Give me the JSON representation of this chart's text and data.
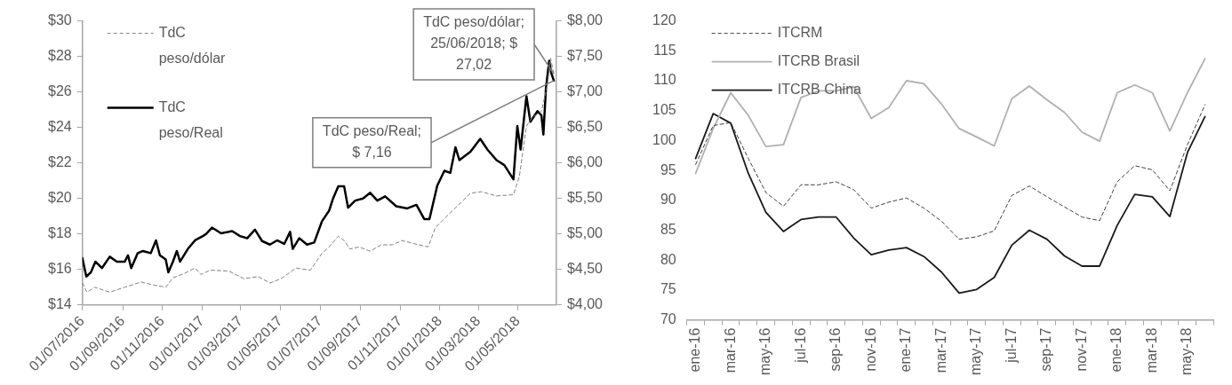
{
  "chart_data": [
    {
      "type": "line",
      "xlim": [
        "2016-07-01",
        "2018-06-29"
      ],
      "xticks": [
        {
          "value": "2016-07-01",
          "label": "01/07/2016"
        },
        {
          "value": "2016-09-01",
          "label": "01/09/2016"
        },
        {
          "value": "2016-11-01",
          "label": "01/11/2016"
        },
        {
          "value": "2017-01-01",
          "label": "01/01/2017"
        },
        {
          "value": "2017-03-01",
          "label": "01/03/2017"
        },
        {
          "value": "2017-05-01",
          "label": "01/05/2017"
        },
        {
          "value": "2017-07-01",
          "label": "01/07/2017"
        },
        {
          "value": "2017-09-01",
          "label": "01/09/2017"
        },
        {
          "value": "2017-11-01",
          "label": "01/11/2017"
        },
        {
          "value": "2018-01-01",
          "label": "01/01/2018"
        },
        {
          "value": "2018-03-01",
          "label": "01/03/2018"
        },
        {
          "value": "2018-05-01",
          "label": "01/05/2018"
        }
      ],
      "ylim": [
        14,
        30
      ],
      "yticks": [
        {
          "value": 14,
          "label": "$14"
        },
        {
          "value": 16,
          "label": "$16"
        },
        {
          "value": 18,
          "label": "$18"
        },
        {
          "value": 20,
          "label": "$20"
        },
        {
          "value": 22,
          "label": "$22"
        },
        {
          "value": 24,
          "label": "$24"
        },
        {
          "value": 26,
          "label": "$26"
        },
        {
          "value": 28,
          "label": "$28"
        },
        {
          "value": 30,
          "label": "$30"
        }
      ],
      "y2lim": [
        4,
        8
      ],
      "y2ticks": [
        {
          "value": 4,
          "label": "$4,00"
        },
        {
          "value": 4.5,
          "label": "$4,50"
        },
        {
          "value": 5,
          "label": "$5,00"
        },
        {
          "value": 5.5,
          "label": "$5,50"
        },
        {
          "value": 6,
          "label": "$6,00"
        },
        {
          "value": 6.5,
          "label": "$6,50"
        },
        {
          "value": 7,
          "label": "$7,00"
        },
        {
          "value": 7.5,
          "label": "$7,50"
        },
        {
          "value": 8,
          "label": "$8,00"
        }
      ],
      "grid": false,
      "legend": "top left",
      "series": [
        {
          "name": "TdC peso/dólar",
          "color": "#808080",
          "line_style": "dashed",
          "x": [
            "2016-07-01",
            "2016-07-08",
            "2016-07-20",
            "2016-08-12",
            "2016-09-04",
            "2016-09-29",
            "2016-10-19",
            "2016-11-06",
            "2016-11-17",
            "2016-12-04",
            "2016-12-21",
            "2016-12-30",
            "2017-01-13",
            "2017-02-11",
            "2017-03-06",
            "2017-03-28",
            "2017-04-15",
            "2017-05-02",
            "2017-05-25",
            "2017-06-16",
            "2017-07-04",
            "2017-07-15",
            "2017-07-29",
            "2017-08-07",
            "2017-08-16",
            "2017-08-30",
            "2017-09-16",
            "2017-10-03",
            "2017-10-20",
            "2017-11-04",
            "2017-11-24",
            "2017-12-14",
            "2017-12-25",
            "2018-01-08",
            "2018-01-20",
            "2018-02-06",
            "2018-02-17",
            "2018-03-06",
            "2018-03-29",
            "2018-04-24",
            "2018-05-03",
            "2018-05-14",
            "2018-05-23",
            "2018-06-06",
            "2018-06-15",
            "2018-06-20",
            "2018-06-25"
          ],
          "values": [
            15.24,
            14.72,
            15.0,
            14.72,
            15.0,
            15.29,
            15.12,
            15.0,
            15.53,
            15.77,
            16.08,
            15.72,
            15.96,
            15.91,
            15.48,
            15.6,
            15.24,
            15.48,
            16.08,
            15.96,
            16.91,
            17.27,
            17.87,
            17.63,
            17.15,
            17.27,
            17.03,
            17.39,
            17.39,
            17.63,
            17.44,
            17.27,
            18.35,
            18.87,
            19.3,
            19.9,
            20.3,
            20.38,
            20.14,
            20.21,
            21.21,
            24.08,
            24.56,
            24.91,
            26.35,
            27.9,
            27.02
          ]
        },
        {
          "name": "TdC peso/Real",
          "color": "#000000",
          "axis": "y2",
          "x": [
            "2016-07-01",
            "2016-07-07",
            "2016-07-14",
            "2016-07-21",
            "2016-07-31",
            "2016-08-12",
            "2016-08-23",
            "2016-09-04",
            "2016-09-09",
            "2016-09-14",
            "2016-09-24",
            "2016-10-02",
            "2016-10-14",
            "2016-10-22",
            "2016-10-28",
            "2016-11-06",
            "2016-11-10",
            "2016-11-17",
            "2016-11-23",
            "2016-11-28",
            "2016-12-10",
            "2016-12-21",
            "2017-01-02",
            "2017-01-07",
            "2017-01-16",
            "2017-01-30",
            "2017-02-16",
            "2017-02-28",
            "2017-03-11",
            "2017-03-23",
            "2017-04-03",
            "2017-04-15",
            "2017-04-26",
            "2017-05-07",
            "2017-05-16",
            "2017-05-20",
            "2017-05-30",
            "2017-06-11",
            "2017-06-22",
            "2017-07-04",
            "2017-07-15",
            "2017-07-21",
            "2017-07-29",
            "2017-08-07",
            "2017-08-13",
            "2017-08-24",
            "2017-09-05",
            "2017-09-16",
            "2017-09-27",
            "2017-10-09",
            "2017-10-26",
            "2017-11-12",
            "2017-11-26",
            "2017-12-08",
            "2017-12-16",
            "2017-12-28",
            "2018-01-08",
            "2018-01-17",
            "2018-01-25",
            "2018-01-31",
            "2018-02-17",
            "2018-03-04",
            "2018-03-15",
            "2018-03-29",
            "2018-04-10",
            "2018-04-24",
            "2018-04-30",
            "2018-05-05",
            "2018-05-14",
            "2018-05-20",
            "2018-05-31",
            "2018-06-06",
            "2018-06-09",
            "2018-06-13",
            "2018-06-18",
            "2018-06-21",
            "2018-06-25"
          ],
          "values": [
            4.66,
            4.4,
            4.46,
            4.61,
            4.52,
            4.68,
            4.61,
            4.61,
            4.7,
            4.52,
            4.73,
            4.76,
            4.73,
            4.91,
            4.7,
            4.64,
            4.46,
            4.61,
            4.76,
            4.61,
            4.79,
            4.91,
            4.97,
            5.0,
            5.09,
            5.01,
            5.04,
            4.97,
            4.94,
            5.06,
            4.9,
            4.85,
            4.91,
            4.86,
            5.03,
            4.79,
            4.94,
            4.85,
            4.88,
            5.18,
            5.33,
            5.5,
            5.67,
            5.67,
            5.37,
            5.47,
            5.5,
            5.58,
            5.47,
            5.53,
            5.39,
            5.36,
            5.41,
            5.21,
            5.21,
            5.68,
            5.89,
            5.86,
            6.22,
            6.04,
            6.16,
            6.34,
            6.19,
            6.04,
            5.97,
            5.77,
            6.52,
            6.19,
            6.94,
            6.58,
            6.73,
            6.67,
            6.4,
            7.06,
            7.44,
            7.27,
            7.16
          ]
        }
      ],
      "annotations": [
        {
          "text": "TdC peso/dólar; 25/06/2018; $ 27,02",
          "x": "2018-06-25",
          "y": 27.02
        },
        {
          "text": "TdC peso/Real; $ 7,16",
          "x": "2018-06-25",
          "y": 26.64
        }
      ]
    },
    {
      "type": "line",
      "categories": [
        "ene-16",
        null,
        "mar-16",
        null,
        "may-16",
        null,
        "jul-16",
        null,
        "sep-16",
        null,
        "nov-16",
        null,
        "ene-17",
        null,
        "mar-17",
        null,
        "may-17",
        null,
        "jul-17",
        null,
        "sep-17",
        null,
        "nov-17",
        null,
        "ene-18",
        null,
        "mar-18",
        null,
        "may-18",
        null
      ],
      "ylim": [
        70,
        120
      ],
      "yticks": [
        70,
        75,
        80,
        85,
        90,
        95,
        100,
        105,
        110,
        115,
        120
      ],
      "grid": false,
      "legend": "top left",
      "series": [
        {
          "name": "ITCRM",
          "color": "#404040",
          "line_style": "dashed",
          "values": [
            96.0,
            102.5,
            103.0,
            97.0,
            91.3,
            89.0,
            92.6,
            92.6,
            93.1,
            91.8,
            88.7,
            89.7,
            90.4,
            88.7,
            86.5,
            83.5,
            83.9,
            84.9,
            90.8,
            92.4,
            90.6,
            88.9,
            87.2,
            86.6,
            93.1,
            95.8,
            95.1,
            91.6,
            99.3,
            106.0
          ]
        },
        {
          "name": "ITCRB Brasil",
          "color": "#b0b0b0",
          "values": [
            94.5,
            102.0,
            108.0,
            104.2,
            99.0,
            99.3,
            107.2,
            108.3,
            108.3,
            109.0,
            103.7,
            105.5,
            110.0,
            109.5,
            106.1,
            102.0,
            100.6,
            99.1,
            107.0,
            109.1,
            106.8,
            104.7,
            101.4,
            99.9,
            108.0,
            109.3,
            108.0,
            101.6,
            108.0,
            113.7
          ]
        },
        {
          "name": "ITCRB China",
          "color": "#1a1a1a",
          "values": [
            97.0,
            104.5,
            102.9,
            94.5,
            88.0,
            84.8,
            86.8,
            87.2,
            87.2,
            83.7,
            80.9,
            81.7,
            82.1,
            80.6,
            78.0,
            74.5,
            75.1,
            77.1,
            82.5,
            85.0,
            83.5,
            80.7,
            79.0,
            79.0,
            85.8,
            91.0,
            90.6,
            87.3,
            98.0,
            104.0
          ]
        }
      ]
    }
  ]
}
